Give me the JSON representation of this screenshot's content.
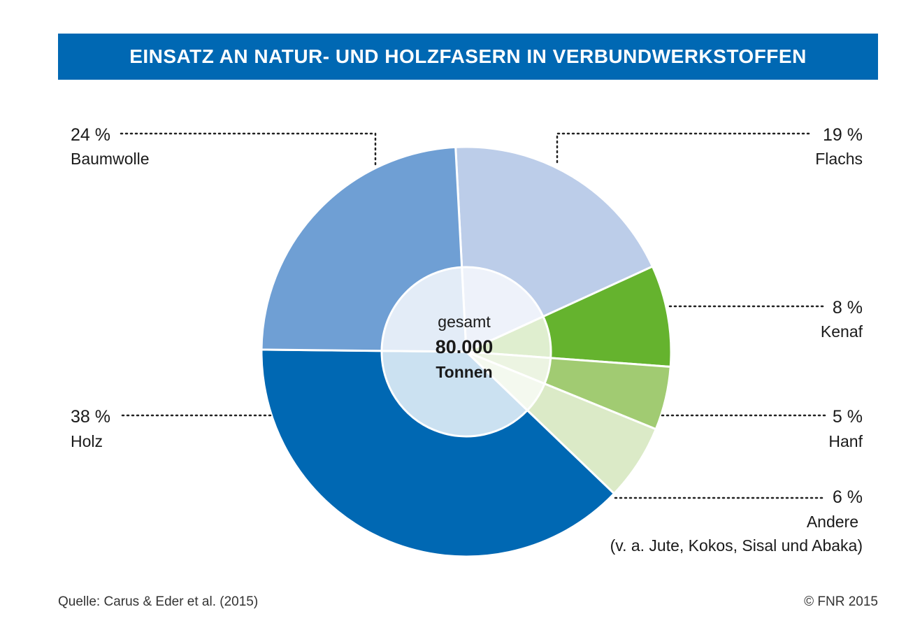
{
  "title": "EINSATZ AN NATUR- UND HOLZFASERN IN VERBUNDWERKSTOFFEN",
  "chart_data": {
    "type": "pie",
    "start_angle_deg": -3,
    "direction": "clockwise",
    "categories": [
      "Flachs",
      "Kenaf",
      "Hanf",
      "Andere",
      "Holz",
      "Baumwolle"
    ],
    "values": [
      19,
      8,
      5,
      6,
      38,
      24
    ],
    "value_labels": [
      "19 %",
      "8 %",
      "5 %",
      "6 %",
      "38 %",
      "24 %"
    ],
    "sub_labels": [
      "",
      "",
      "",
      "(v. a. Jute, Kokos, Sisal und Abaka)",
      "",
      ""
    ],
    "colors": [
      "#bccde9",
      "#65b32e",
      "#a1cb72",
      "#dbeac7",
      "#0068b3",
      "#6f9fd4"
    ],
    "inner_colors": [
      "#eef2fa",
      "#dfeecf",
      "#ecf4e2",
      "#f4f9ef",
      "#cbe1f1",
      "#e3ecf7"
    ],
    "center": {
      "line1": "gesamt",
      "value": "80.000",
      "unit": "Tonnen"
    }
  },
  "source": "Quelle: Carus & Eder et al. (2015)",
  "copyright": "© FNR 2015"
}
